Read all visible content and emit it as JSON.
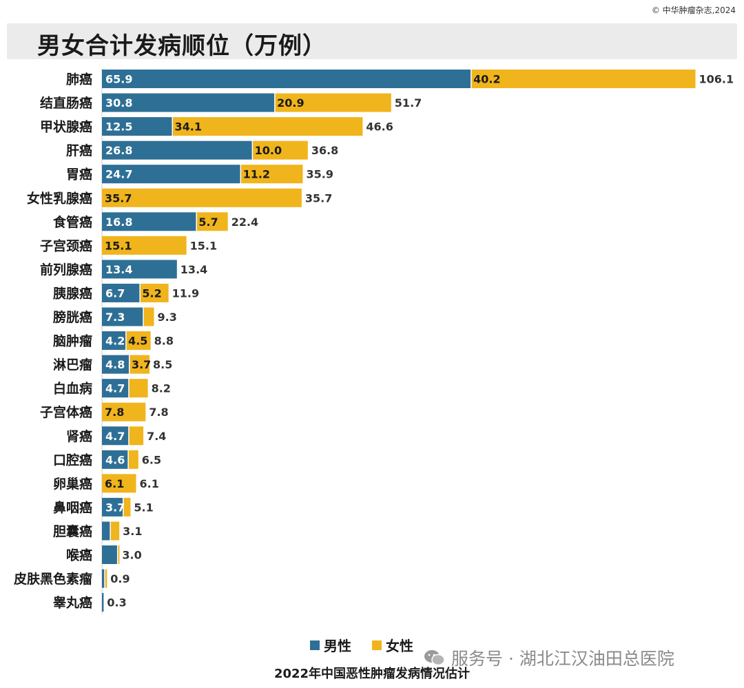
{
  "copyright": "© 中华肿瘤杂志,2024",
  "colors": {
    "male": "#2e6f96",
    "female": "#f0b41c",
    "title_bg": "#ebebeb"
  },
  "legend": {
    "male": "男性",
    "female": "女性"
  },
  "watermark": {
    "icon": "wechat-icon",
    "text": "服务号 · 湖北江汉油田总医院"
  },
  "footer": "2022年中国恶性肿瘤发病情况估计",
  "chart_data": {
    "type": "bar",
    "orientation": "horizontal",
    "stacked": true,
    "title": "男女合计发病顺位（万例）",
    "categories": [
      "肺癌",
      "结直肠癌",
      "甲状腺癌",
      "肝癌",
      "胃癌",
      "女性乳腺癌",
      "食管癌",
      "子宫颈癌",
      "前列腺癌",
      "胰腺癌",
      "膀胱癌",
      "脑肿瘤",
      "淋巴瘤",
      "白血病",
      "子宫体癌",
      "肾癌",
      "口腔癌",
      "卵巢癌",
      "鼻咽癌",
      "胆囊癌",
      "喉癌",
      "皮肤黑色素瘤",
      "睾丸癌"
    ],
    "series": [
      {
        "name": "男性",
        "values": [
          65.9,
          30.8,
          12.5,
          26.8,
          24.7,
          0,
          16.8,
          0,
          13.4,
          6.7,
          7.3,
          4.2,
          4.8,
          4.7,
          0,
          4.7,
          4.6,
          0,
          3.7,
          1.4,
          2.7,
          0.4,
          0.3
        ],
        "labels": [
          "65.9",
          "30.8",
          "12.5",
          "26.8",
          "24.7",
          "",
          "16.8",
          "",
          "13.4",
          "6.7",
          "7.3",
          "4.2",
          "4.8",
          "4.7",
          "",
          "4.7",
          "4.6",
          "",
          "3.7",
          "",
          "",
          "",
          ""
        ]
      },
      {
        "name": "女性",
        "values": [
          40.2,
          20.9,
          34.1,
          10.0,
          11.2,
          35.7,
          5.7,
          15.1,
          0,
          5.2,
          2.0,
          4.5,
          3.7,
          3.5,
          7.8,
          2.7,
          1.9,
          6.1,
          1.4,
          1.7,
          0.3,
          0.5,
          0
        ],
        "labels": [
          "40.2",
          "20.9",
          "34.1",
          "10.0",
          "11.2",
          "35.7",
          "5.7",
          "15.1",
          "",
          "5.2",
          "",
          "4.5",
          "3.7",
          "",
          "7.8",
          "",
          "",
          "6.1",
          "",
          "",
          "",
          "",
          ""
        ]
      }
    ],
    "totals": [
      "106.1",
      "51.7",
      "46.6",
      "36.8",
      "35.9",
      "35.7",
      "22.4",
      "15.1",
      "13.4",
      "11.9",
      "9.3",
      "8.8",
      "8.5",
      "8.2",
      "7.8",
      "7.4",
      "6.5",
      "6.1",
      "5.1",
      "3.1",
      "3.0",
      "0.9",
      "0.3"
    ],
    "legend_position": "bottom-center",
    "grid": false
  }
}
